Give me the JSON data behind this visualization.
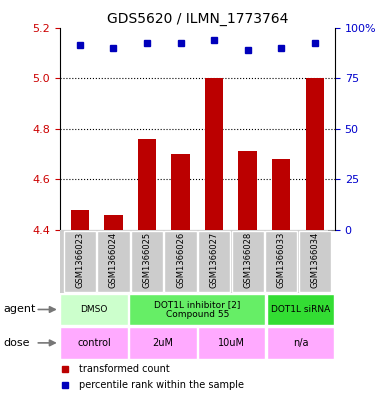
{
  "title": "GDS5620 / ILMN_1773764",
  "samples": [
    "GSM1366023",
    "GSM1366024",
    "GSM1366025",
    "GSM1366026",
    "GSM1366027",
    "GSM1366028",
    "GSM1366033",
    "GSM1366034"
  ],
  "bar_values": [
    4.48,
    4.46,
    4.76,
    4.7,
    5.0,
    4.71,
    4.68,
    5.0
  ],
  "dot_y_values": [
    5.13,
    5.12,
    5.14,
    5.14,
    5.15,
    5.11,
    5.12,
    5.14
  ],
  "ylim": [
    4.4,
    5.2
  ],
  "yticks": [
    4.4,
    4.6,
    4.8,
    5.0,
    5.2
  ],
  "right_ytick_positions": [
    4.4,
    4.6,
    4.8,
    5.0,
    5.2
  ],
  "right_ytick_labels": [
    "0",
    "25",
    "50",
    "75",
    "100%"
  ],
  "bar_color": "#bb0000",
  "dot_color": "#0000bb",
  "bar_width": 0.55,
  "grid_dotted_at": [
    4.6,
    4.8,
    5.0
  ],
  "agents": [
    {
      "label": "DMSO",
      "start": 0,
      "end": 2,
      "color": "#ccffcc"
    },
    {
      "label": "DOT1L inhibitor [2]\nCompound 55",
      "start": 2,
      "end": 6,
      "color": "#66ee66"
    },
    {
      "label": "DOT1L siRNA",
      "start": 6,
      "end": 8,
      "color": "#33dd33"
    }
  ],
  "doses": [
    {
      "label": "control",
      "start": 0,
      "end": 2,
      "color": "#ffaaff"
    },
    {
      "label": "2uM",
      "start": 2,
      "end": 4,
      "color": "#ffaaff"
    },
    {
      "label": "10uM",
      "start": 4,
      "end": 6,
      "color": "#ffaaff"
    },
    {
      "label": "n/a",
      "start": 6,
      "end": 8,
      "color": "#ffaaff"
    }
  ],
  "legend": [
    {
      "label": "transformed count",
      "color": "#bb0000"
    },
    {
      "label": "percentile rank within the sample",
      "color": "#0000bb"
    }
  ],
  "tick_label_color": "#cc0000",
  "right_tick_color": "#0000cc",
  "background_color": "#ffffff",
  "sample_box_color": "#cccccc",
  "sample_box_edge_color": "#aaaaaa",
  "agent_row_label": "agent",
  "dose_row_label": "dose",
  "title_fontsize": 10,
  "bar_fontsize": 8,
  "sample_fontsize": 6,
  "label_fontsize": 8,
  "legend_fontsize": 7
}
